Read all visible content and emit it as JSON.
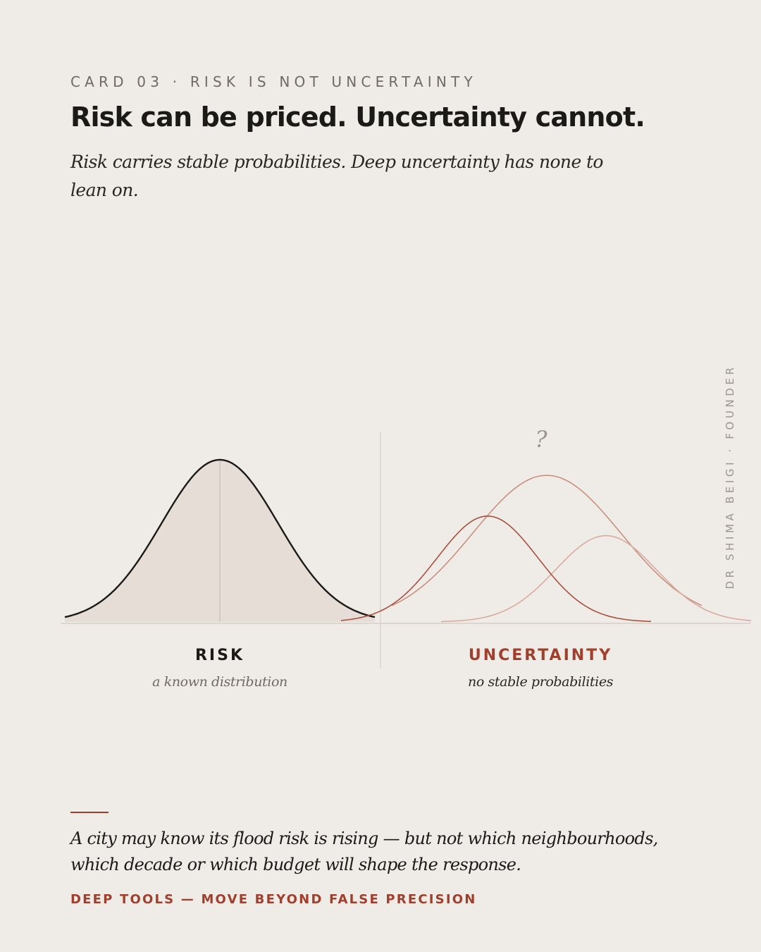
{
  "card": {
    "eyebrow": "CARD 03 · RISK IS NOT UNCERTAINTY",
    "title": "Risk can be priced. Uncertainty cannot.",
    "subtitle": "Risk carries stable probabilities. Deep uncertainty has none to lean on."
  },
  "figure": {
    "risk": {
      "label": "RISK",
      "caption": "a known distribution",
      "curve": {
        "mean": 0,
        "sd": 1
      }
    },
    "uncertainty": {
      "label": "UNCERTAINTY",
      "caption": "no stable probabilities",
      "marker": "?",
      "curves": [
        {
          "mean": -1.0,
          "sd": 0.85,
          "peak": 0.65
        },
        {
          "mean": 0.0,
          "sd": 1.25,
          "peak": 0.9
        },
        {
          "mean": 1.0,
          "sd": 0.85,
          "peak": 0.53
        }
      ]
    },
    "colors": {
      "risk_stroke": "#1c1a17",
      "risk_fill": "#e6ded6",
      "uncertainty_dark": "#a9503e",
      "uncertainty_mid": "#c9907f",
      "uncertainty_light": "#d8ada0",
      "baseline": "#d6cfc7",
      "divider": "#dcd5cd",
      "mean_line": "#cbc3ba"
    }
  },
  "credit": "DR SHIMA BEIGI · FOUNDER",
  "quote": "A city may know its flood risk is rising — but not which neighbourhoods, which decade or which budget will shape the response.",
  "tagline": "DEEP TOOLS — MOVE BEYOND FALSE PRECISION"
}
